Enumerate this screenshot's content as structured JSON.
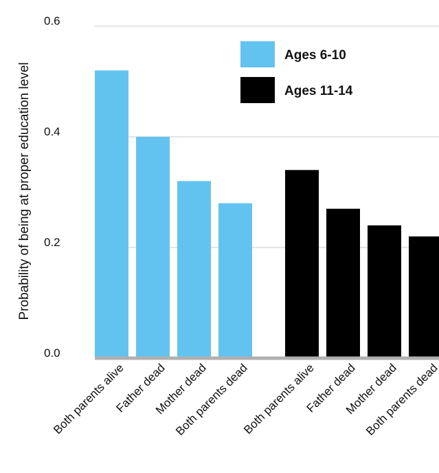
{
  "chart_data": {
    "type": "bar",
    "title": "",
    "xlabel": "",
    "ylabel": "Probability of being at proper education level",
    "ylim": [
      0,
      0.6
    ],
    "yticks": [
      "0.0",
      "0.2",
      "0.4",
      "0.6"
    ],
    "grid": true,
    "legend_position": "top-right",
    "series": [
      {
        "name": "Ages 6-10",
        "color": "#63c3f0",
        "categories": [
          "Both parents alive",
          "Father dead",
          "Mother dead",
          "Both parents dead"
        ],
        "values": [
          0.52,
          0.4,
          0.32,
          0.28
        ]
      },
      {
        "name": "Ages 11-14",
        "color": "#000000",
        "categories": [
          "Both parents alive",
          "Father dead",
          "Mother dead",
          "Both parents dead"
        ],
        "values": [
          0.34,
          0.27,
          0.24,
          0.22
        ]
      }
    ]
  }
}
